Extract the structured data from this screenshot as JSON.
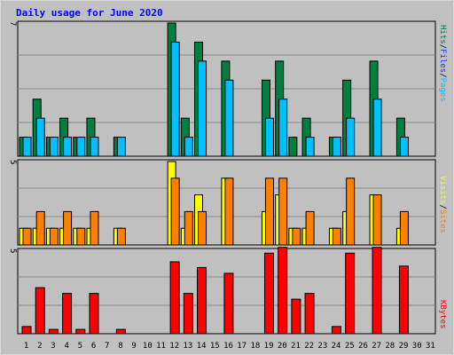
{
  "title": "Daily usage for June 2020",
  "colors": {
    "pages": "#00c0ff",
    "files": "#0040ff",
    "hits": "#008040",
    "sites": "#ff8000",
    "visits": "#ffff00",
    "kbytes": "#ff0000",
    "panel_bg": "#c0c0c0",
    "weekend_tick": "#008040"
  },
  "chart_data": [
    {
      "type": "bar",
      "panel": "top",
      "y_tick_label": "7",
      "ylim": [
        0,
        7
      ],
      "categories": [
        "1",
        "2",
        "3",
        "4",
        "5",
        "6",
        "7",
        "8",
        "9",
        "10",
        "11",
        "12",
        "13",
        "14",
        "15",
        "16",
        "17",
        "18",
        "19",
        "20",
        "21",
        "22",
        "23",
        "24",
        "25",
        "26",
        "27",
        "28",
        "29",
        "30",
        "31"
      ],
      "series": [
        {
          "name": "Hits",
          "values": [
            1,
            3,
            1,
            2,
            1,
            2,
            0,
            1,
            0,
            0,
            0,
            7,
            2,
            6,
            0,
            5,
            0,
            0,
            4,
            5,
            1,
            2,
            0,
            1,
            4,
            0,
            5,
            0,
            2,
            0,
            0
          ]
        },
        {
          "name": "Pages",
          "values": [
            1,
            2,
            1,
            1,
            1,
            1,
            0,
            1,
            0,
            0,
            0,
            6,
            1,
            5,
            0,
            4,
            0,
            0,
            2,
            3,
            0,
            1,
            0,
            1,
            2,
            0,
            3,
            0,
            1,
            0,
            0
          ]
        }
      ],
      "legend": [
        "Pages",
        "Files",
        "Hits"
      ]
    },
    {
      "type": "bar",
      "panel": "middle",
      "y_tick_label": "5",
      "ylim": [
        0,
        5
      ],
      "categories": [
        "1",
        "2",
        "3",
        "4",
        "5",
        "6",
        "7",
        "8",
        "9",
        "10",
        "11",
        "12",
        "13",
        "14",
        "15",
        "16",
        "17",
        "18",
        "19",
        "20",
        "21",
        "22",
        "23",
        "24",
        "25",
        "26",
        "27",
        "28",
        "29",
        "30",
        "31"
      ],
      "series": [
        {
          "name": "Visits",
          "values": [
            1,
            1,
            1,
            1,
            1,
            1,
            0,
            1,
            0,
            0,
            0,
            5,
            1,
            3,
            0,
            4,
            0,
            0,
            2,
            3,
            1,
            1,
            0,
            1,
            2,
            0,
            3,
            0,
            1,
            0,
            0
          ]
        },
        {
          "name": "Sites",
          "values": [
            1,
            2,
            1,
            2,
            1,
            2,
            0,
            1,
            0,
            0,
            0,
            4,
            2,
            2,
            0,
            4,
            0,
            0,
            4,
            4,
            1,
            2,
            0,
            1,
            4,
            0,
            3,
            0,
            2,
            0,
            0
          ]
        }
      ],
      "legend": [
        "Sites",
        "Visits"
      ]
    },
    {
      "type": "bar",
      "panel": "bottom",
      "y_tick_label": "5",
      "ylim": [
        0,
        5.8
      ],
      "categories": [
        "1",
        "2",
        "3",
        "4",
        "5",
        "6",
        "7",
        "8",
        "9",
        "10",
        "11",
        "12",
        "13",
        "14",
        "15",
        "16",
        "17",
        "18",
        "19",
        "20",
        "21",
        "22",
        "23",
        "24",
        "25",
        "26",
        "27",
        "28",
        "29",
        "30",
        "31"
      ],
      "series": [
        {
          "name": "KBytes",
          "values": [
            0.5,
            3.2,
            0.3,
            2.8,
            0.3,
            2.8,
            0,
            0.3,
            0,
            0,
            0,
            5.0,
            2.8,
            4.6,
            0,
            4.2,
            0,
            0,
            5.6,
            6.0,
            2.4,
            2.8,
            0,
            0.5,
            5.6,
            0,
            6.0,
            0,
            4.7,
            0,
            0
          ]
        }
      ],
      "legend": [
        "KBytes"
      ]
    }
  ],
  "x_labels": [
    "1",
    "2",
    "3",
    "4",
    "5",
    "6",
    "7",
    "8",
    "9",
    "10",
    "11",
    "12",
    "13",
    "14",
    "15",
    "16",
    "17",
    "18",
    "19",
    "20",
    "21",
    "22",
    "23",
    "24",
    "25",
    "26",
    "27",
    "28",
    "29",
    "30",
    "31"
  ],
  "weekend_days": [
    "6",
    "7",
    "13",
    "14",
    "20",
    "21",
    "27",
    "28"
  ],
  "legend_text": {
    "top_pages": "Pages",
    "top_files": "Files",
    "top_hits": "Hits",
    "top_sep": "/",
    "mid_sites": "Sites",
    "mid_visits": "Visits",
    "mid_sep": "/",
    "bot_kbytes": "KBytes"
  }
}
